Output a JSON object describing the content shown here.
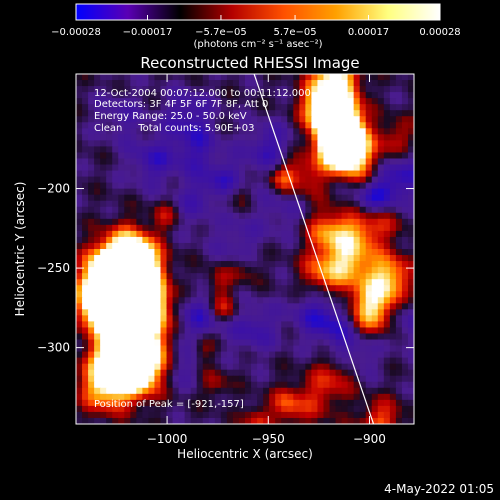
{
  "chart_data": {
    "type": "heatmap",
    "title": "Reconstructed RHESSI Image",
    "xlabel": "Heliocentric X (arcsec)",
    "ylabel": "Heliocentric Y (arcsec)",
    "xlim": [
      -1045,
      -878
    ],
    "ylim": [
      -348,
      -128
    ],
    "x_ticks": [
      -1000,
      -950,
      -900
    ],
    "x_tick_labels": [
      "−1000",
      "−950",
      "−900"
    ],
    "y_ticks": [
      -200,
      -250,
      -300
    ],
    "y_tick_labels": [
      "−200",
      "−250",
      "−300"
    ],
    "colorbar": {
      "range": [
        -0.00028,
        0.00028
      ],
      "ticks": [
        -0.00028,
        -0.00017,
        -5.7e-05,
        5.7e-05,
        0.00017,
        0.00028
      ],
      "tick_labels": [
        "−0.00028",
        "−0.00017",
        "−5.7e−05",
        "5.7e−05",
        "0.00017",
        "0.00028"
      ],
      "units_label": "(photons cm⁻² s⁻¹ asec⁻²)",
      "colors": [
        "#0000ff",
        "#5a00b4",
        "#000000",
        "#b40000",
        "#ff5000",
        "#ffa000",
        "#ffff80",
        "#ffffff"
      ]
    },
    "annotations": [
      "12-Oct-2004 00:07:12.000 to 00:11:12.000",
      "Detectors: 3F 4F 5F 6F 7F 8F, Att 0",
      "Energy Range: 25.0 - 50.0 keV",
      "Clean     Total counts: 5.90E+03"
    ],
    "peak_label": "Position of Peak = [-921,-157]",
    "limb_line": [
      [
        -957,
        -128
      ],
      [
        -898,
        -348
      ]
    ],
    "grid": false
  },
  "footer": {
    "date": "4-May-2022 01:05"
  }
}
